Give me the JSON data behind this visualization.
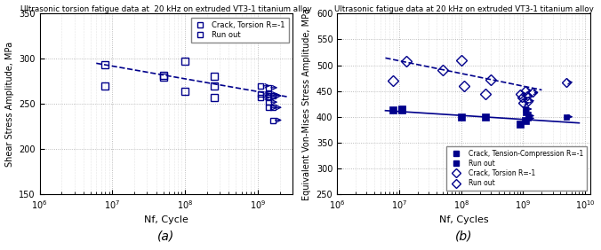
{
  "panel_a": {
    "title": "Ultrasonic torsion fatigue data at  20 kHz on extruded VT3-1 titanium alloy",
    "xlabel": "Nf, Cycle",
    "ylabel": "Shear Stress Amplitude, MPa",
    "sublabel": "(a)",
    "ylim": [
      150,
      350
    ],
    "xlim": [
      1000000.0,
      3000000000.0
    ],
    "crack_x": [
      8000000.0,
      8000000.0,
      50000000.0,
      50000000.0,
      100000000.0,
      100000000.0,
      250000000.0,
      250000000.0,
      250000000.0
    ],
    "crack_y": [
      293,
      270,
      282,
      280,
      297,
      264,
      270,
      281,
      257
    ],
    "runout_x": [
      1100000000.0,
      1100000000.0,
      1100000000.0,
      1400000000.0,
      1400000000.0,
      1400000000.0,
      1400000000.0,
      1400000000.0,
      1600000000.0,
      1600000000.0,
      1600000000.0
    ],
    "runout_y": [
      270,
      261,
      257,
      268,
      261,
      257,
      252,
      246,
      259,
      246,
      232
    ],
    "fit_x": [
      6000000.0,
      2500000000.0
    ],
    "fit_y": [
      295,
      258
    ],
    "color": "#00008B",
    "legend_crack": "Crack, Torsion R=-1",
    "legend_runout": "Run out"
  },
  "panel_b": {
    "title": "Ultrasonic fatigue data at 20 kHz on extruded VT3-1 titanium alloy",
    "xlabel": "Nf, Cycles",
    "ylabel": "Equivalent Von-Mises Stress Amplitude, MPa",
    "sublabel": "(b)",
    "ylim": [
      250,
      600
    ],
    "xlim": [
      1000000.0,
      12000000000.0
    ],
    "tc_crack_x": [
      8000000.0,
      11000000.0,
      11000000.0,
      100000000.0,
      250000000.0,
      900000000.0,
      1100000000.0
    ],
    "tc_crack_y": [
      414,
      415,
      414,
      400,
      400,
      386,
      393
    ],
    "tc_runout_x": [
      1100000000.0,
      1100000000.0,
      1200000000.0,
      1200000000.0,
      5000000000.0
    ],
    "tc_runout_y": [
      415,
      408,
      402,
      397,
      400
    ],
    "tor_crack_x": [
      8000000.0,
      13000000.0,
      50000000.0,
      100000000.0,
      110000000.0,
      250000000.0,
      300000000.0
    ],
    "tor_crack_y": [
      470,
      508,
      490,
      510,
      460,
      445,
      472
    ],
    "tor_runout_x": [
      900000000.0,
      950000000.0,
      1000000000.0,
      1100000000.0,
      1150000000.0,
      1200000000.0,
      1400000000.0,
      5000000000.0
    ],
    "tor_runout_y": [
      445,
      437,
      427,
      451,
      441,
      431,
      447,
      467
    ],
    "tc_fit_x": [
      6000000.0,
      8000000000.0
    ],
    "tc_fit_y": [
      412,
      388
    ],
    "tor_fit_x": [
      6000000.0,
      2000000000.0
    ],
    "tor_fit_y": [
      514,
      452
    ],
    "color": "#00008B",
    "legend_tc_crack": "Crack, Tension-Compression R=-1",
    "legend_tc_runout": "Run out",
    "legend_tor_crack": "Crack, Torsion R=-1",
    "legend_tor_runout": "Run out"
  }
}
